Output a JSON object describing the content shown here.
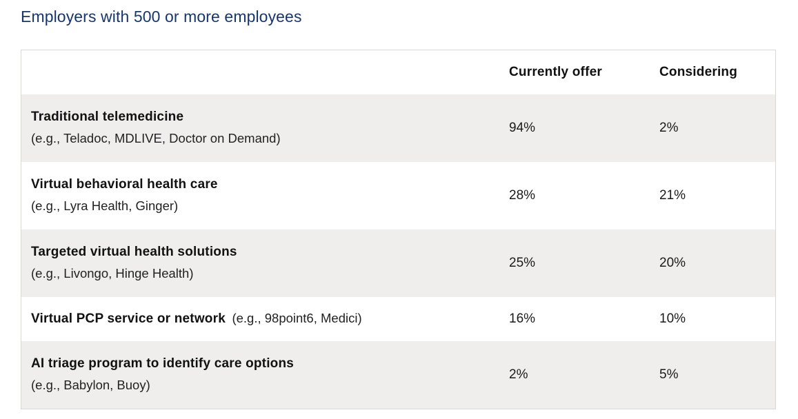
{
  "page": {
    "title": "Employers with 500 or more employees"
  },
  "table": {
    "columns": [
      {
        "label": "Currently offer"
      },
      {
        "label": "Considering"
      }
    ],
    "rows": [
      {
        "name": "Traditional telemedicine",
        "examples": "(e.g., Teladoc, MDLIVE, Doctor on Demand)",
        "currently_offer": "94%",
        "considering": "2%"
      },
      {
        "name": "Virtual behavioral health care",
        "examples": "(e.g., Lyra Health, Ginger)",
        "currently_offer": "28%",
        "considering": "21%"
      },
      {
        "name": "Targeted virtual health solutions",
        "examples": "(e.g., Livongo, Hinge Health)",
        "currently_offer": "25%",
        "considering": "20%"
      },
      {
        "name": "Virtual PCP service or network",
        "examples": "(e.g., 98point6, Medici)",
        "currently_offer": "16%",
        "considering": "10%"
      },
      {
        "name": "AI triage program to identify care options",
        "examples": "(e.g., Babylon, Buoy)",
        "currently_offer": "2%",
        "considering": "5%"
      }
    ],
    "colors": {
      "title_navy": "#17366d",
      "row_stripe": "#efeeec",
      "border": "#d9d8d5",
      "text": "#1a1a1a"
    }
  },
  "chart_data": {
    "type": "table",
    "title": "Employers with 500 or more employees",
    "categories": [
      "Traditional telemedicine (e.g., Teladoc, MDLIVE, Doctor on Demand)",
      "Virtual behavioral health care (e.g., Lyra Health, Ginger)",
      "Targeted virtual health solutions (e.g., Livongo, Hinge Health)",
      "Virtual PCP service or network (e.g., 98point6, Medici)",
      "AI triage program to identify care options (e.g., Babylon, Buoy)"
    ],
    "series": [
      {
        "name": "Currently offer",
        "values": [
          94,
          28,
          25,
          16,
          2
        ]
      },
      {
        "name": "Considering",
        "values": [
          2,
          21,
          20,
          10,
          5
        ]
      }
    ],
    "value_unit": "%"
  }
}
